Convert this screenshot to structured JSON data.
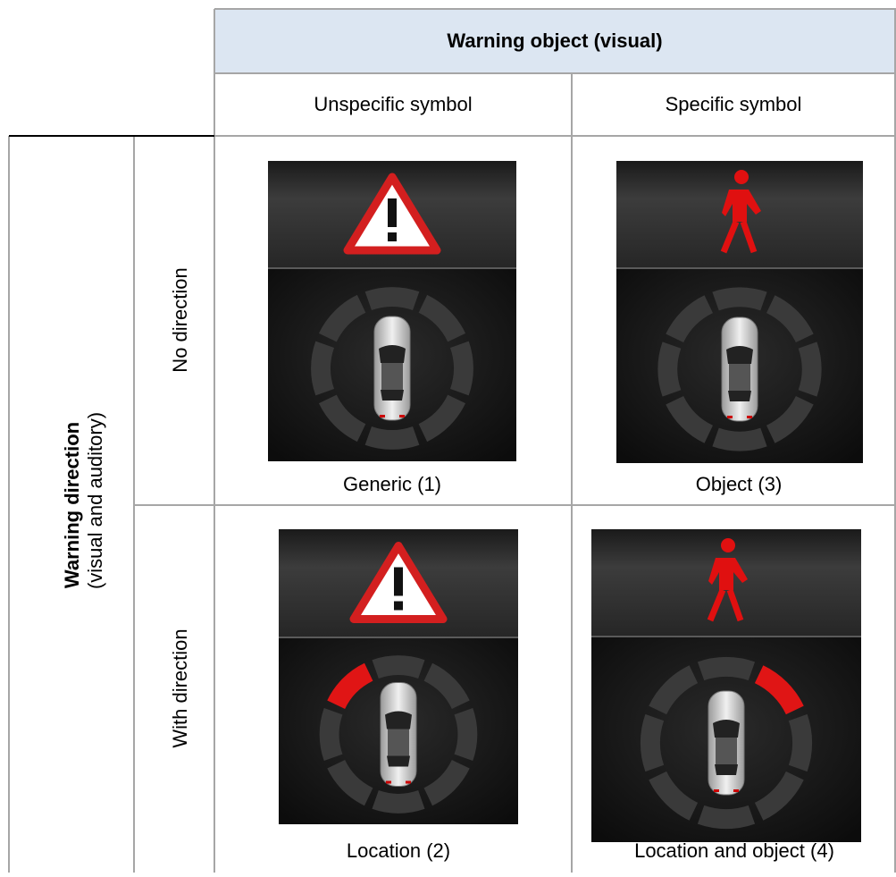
{
  "header": {
    "title": "Warning object (visual)",
    "columns": [
      "Unspecific symbol",
      "Specific symbol"
    ]
  },
  "row_header": {
    "title": "Warning direction",
    "subtitle": "(visual and auditory)",
    "rows": [
      "No direction",
      "With direction"
    ]
  },
  "cells": [
    [
      "Generic (1)",
      "Object (3)"
    ],
    [
      "Location (2)",
      "Location and object (4)"
    ]
  ]
}
